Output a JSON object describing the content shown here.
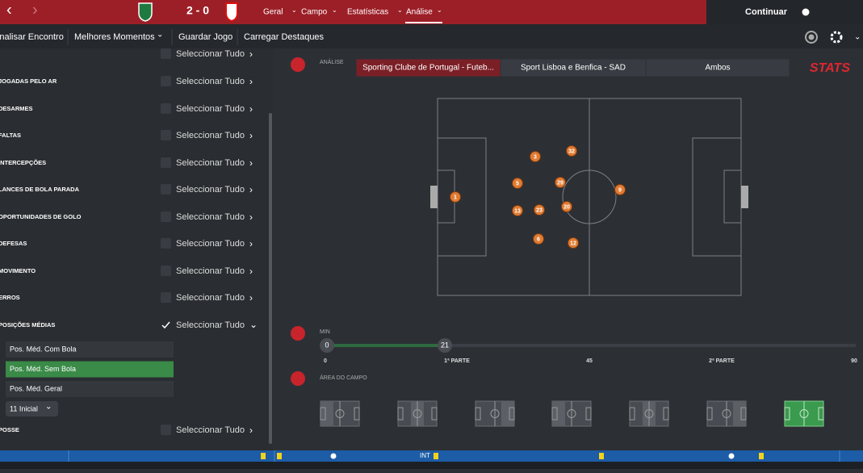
{
  "header": {
    "score": "2 - 0",
    "nav": [
      "Geral",
      "Campo",
      "Estatísticas",
      "Análise"
    ],
    "continue": "Continuar"
  },
  "toolbar": [
    "Analisar Encontro",
    "Melhores Momentos",
    "Guardar Jogo",
    "Carregar Destaques"
  ],
  "sidebar": {
    "top_action": "Seleccionar Tudo",
    "categories": [
      {
        "label": "JOGADAS PELO AR",
        "action": "Seleccionar Tudo"
      },
      {
        "label": "DESARMES",
        "action": "Seleccionar Tudo"
      },
      {
        "label": "FALTAS",
        "action": "Seleccionar Tudo"
      },
      {
        "label": "INTERCEPÇÕES",
        "action": "Seleccionar Tudo"
      },
      {
        "label": "LANCES DE BOLA PARADA",
        "action": "Seleccionar Tudo"
      },
      {
        "label": "OPORTUNIDADES DE GOLO",
        "action": "Seleccionar Tudo"
      },
      {
        "label": "DEFESAS",
        "action": "Seleccionar Tudo"
      },
      {
        "label": "MOVIMENTO",
        "action": "Seleccionar Tudo"
      },
      {
        "label": "ERROS",
        "action": "Seleccionar Tudo"
      },
      {
        "label": "POSIÇÕES MÉDIAS",
        "action": "Seleccionar Tudo"
      }
    ],
    "options": [
      "Pos. Méd. Com Bola",
      "Pos. Méd. Sem Bola",
      "Pos. Méd. Geral"
    ],
    "lineup": "11 Inicial",
    "last": {
      "label": "POSSE",
      "action": "Seleccionar Tudo"
    }
  },
  "analysis": {
    "label": "ANÁLISE",
    "tabs": [
      "Sporting Clube de Portugal - Futeb...",
      "Sport Lisboa e Benfica - SAD",
      "Ambos"
    ],
    "brand": "STATS",
    "players": [
      1,
      3,
      32,
      5,
      29,
      9,
      13,
      23,
      20,
      6,
      12
    ],
    "time": {
      "label": "MIN",
      "start": 0,
      "current": 21,
      "ticks": [
        "0",
        "1ª PARTE",
        "45",
        "2ª PARTE",
        "90"
      ]
    },
    "area_label": "ÁREA DO CAMPO"
  },
  "timeline": {
    "marker": "INT"
  }
}
